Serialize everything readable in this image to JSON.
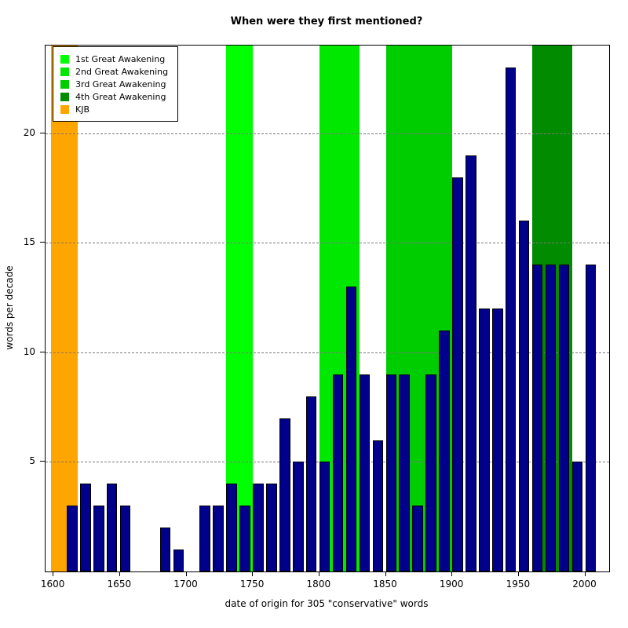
{
  "chart_data": {
    "type": "bar",
    "title": "When were they first mentioned?",
    "xlabel": "date of origin for 305 \"conservative\" words",
    "ylabel": "words per decade",
    "xlim": [
      1594,
      2018
    ],
    "ylim": [
      0,
      24
    ],
    "x_ticks": [
      1600,
      1650,
      1700,
      1750,
      1800,
      1850,
      1900,
      1950,
      2000
    ],
    "y_ticks": [
      5,
      10,
      15,
      20
    ],
    "grid": "horizontal-dashed",
    "legend_position": "top-left",
    "bar_color": "#00008B",
    "bar_border_color": "#000000",
    "bar_width_years": 8,
    "decades": [
      1610,
      1620,
      1630,
      1640,
      1650,
      1660,
      1670,
      1680,
      1690,
      1700,
      1710,
      1720,
      1730,
      1740,
      1750,
      1760,
      1770,
      1780,
      1790,
      1800,
      1810,
      1820,
      1830,
      1840,
      1850,
      1860,
      1870,
      1880,
      1890,
      1900,
      1910,
      1920,
      1930,
      1940,
      1950,
      1960,
      1970,
      1980,
      1990,
      2000
    ],
    "values": [
      3,
      4,
      3,
      4,
      3,
      0,
      0,
      2,
      1,
      0,
      3,
      3,
      4,
      3,
      4,
      4,
      7,
      5,
      8,
      5,
      9,
      13,
      9,
      6,
      9,
      9,
      3,
      9,
      11,
      18,
      19,
      12,
      12,
      23,
      16,
      14,
      14,
      14,
      5,
      14
    ],
    "total_words": 305,
    "bands": [
      {
        "label": "KJB",
        "from": 1598,
        "to": 1618,
        "color": "#FFA500"
      },
      {
        "label": "1st Great Awakening",
        "from": 1730,
        "to": 1750,
        "color": "#00FF00"
      },
      {
        "label": "2nd Great Awakening",
        "from": 1800,
        "to": 1830,
        "color": "#00E800"
      },
      {
        "label": "3rd Great Awakening",
        "from": 1850,
        "to": 1900,
        "color": "#00CD00"
      },
      {
        "label": "4th Great Awakening",
        "from": 1960,
        "to": 1990,
        "color": "#008B00"
      }
    ],
    "legend": [
      {
        "label": "1st Great Awakening",
        "color": "#00FF00"
      },
      {
        "label": "2nd Great Awakening",
        "color": "#00E800"
      },
      {
        "label": "3rd Great Awakening",
        "color": "#00CD00"
      },
      {
        "label": "4th Great Awakening",
        "color": "#008B00"
      },
      {
        "label": "KJB",
        "color": "#FFA500"
      }
    ]
  }
}
